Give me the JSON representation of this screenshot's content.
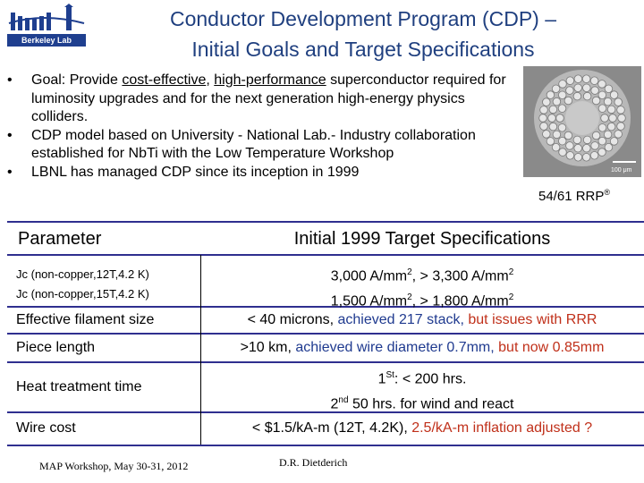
{
  "logo": {
    "caption": "Berkeley Lab"
  },
  "title": {
    "line1": "Conductor Development Program (CDP) –",
    "line2": "Initial Goals and Target Specifications"
  },
  "bullets": {
    "b1_prefix": "Goal: Provide ",
    "b1_u1": "cost-effective",
    "b1_mid": ", ",
    "b1_u2": "high-performance",
    "b1_suffix": " superconductor required for luminosity upgrades and for the next generation high-energy physics colliders.",
    "b2": "CDP model based on University - National Lab.- Industry collaboration established for NbTi with the Low Temperature Workshop",
    "b3": "LBNL has managed CDP since its inception in 1999"
  },
  "image": {
    "scale_label": "100 μm",
    "caption": "54/61 RRP",
    "caption_mark": "®"
  },
  "table": {
    "header_param": "Parameter",
    "header_spec": "Initial 1999 Target Specifications",
    "jc12_label": "Jc (non-copper,12T,4.2 K)",
    "jc15_label": "Jc (non-copper,15T,4.2 K)",
    "jc12_value": "3,000 A/mm",
    "jc12_target": ",  > 3,300 A/mm",
    "jc15_value": "1,500 A/mm",
    "jc15_target": ",  > 1,800 A/mm",
    "sq": "2",
    "filament_label": "Effective filament size",
    "filament_a": "< 40 microns, ",
    "filament_b": "achieved 217 stack, ",
    "filament_c": "but issues with RRR",
    "piece_label": "Piece length",
    "piece_a": ">10 km, ",
    "piece_b": "achieved wire diameter 0.7mm, ",
    "piece_c": "but now 0.85mm",
    "heat_label": "Heat treatment time",
    "heat_1": "1",
    "heat_1_sup": "St",
    "heat_1_rest": ": < 200 hrs.",
    "heat_2": "2",
    "heat_2_sup": "nd",
    "heat_2_rest": " 50 hrs. for wind and react",
    "cost_label": "Wire cost",
    "cost_a": "< $1.5/kA-m (12T, 4.2K), ",
    "cost_b": "2.5/kA-m inflation adjusted ?"
  },
  "footer": {
    "left": "MAP Workshop, May 30-31, 2012",
    "center": "D.R. Dietderich"
  },
  "colors": {
    "title": "#1f3f7f",
    "rule": "#2f2f8f",
    "red": "#c0301a",
    "blue": "#1f3a8f"
  }
}
